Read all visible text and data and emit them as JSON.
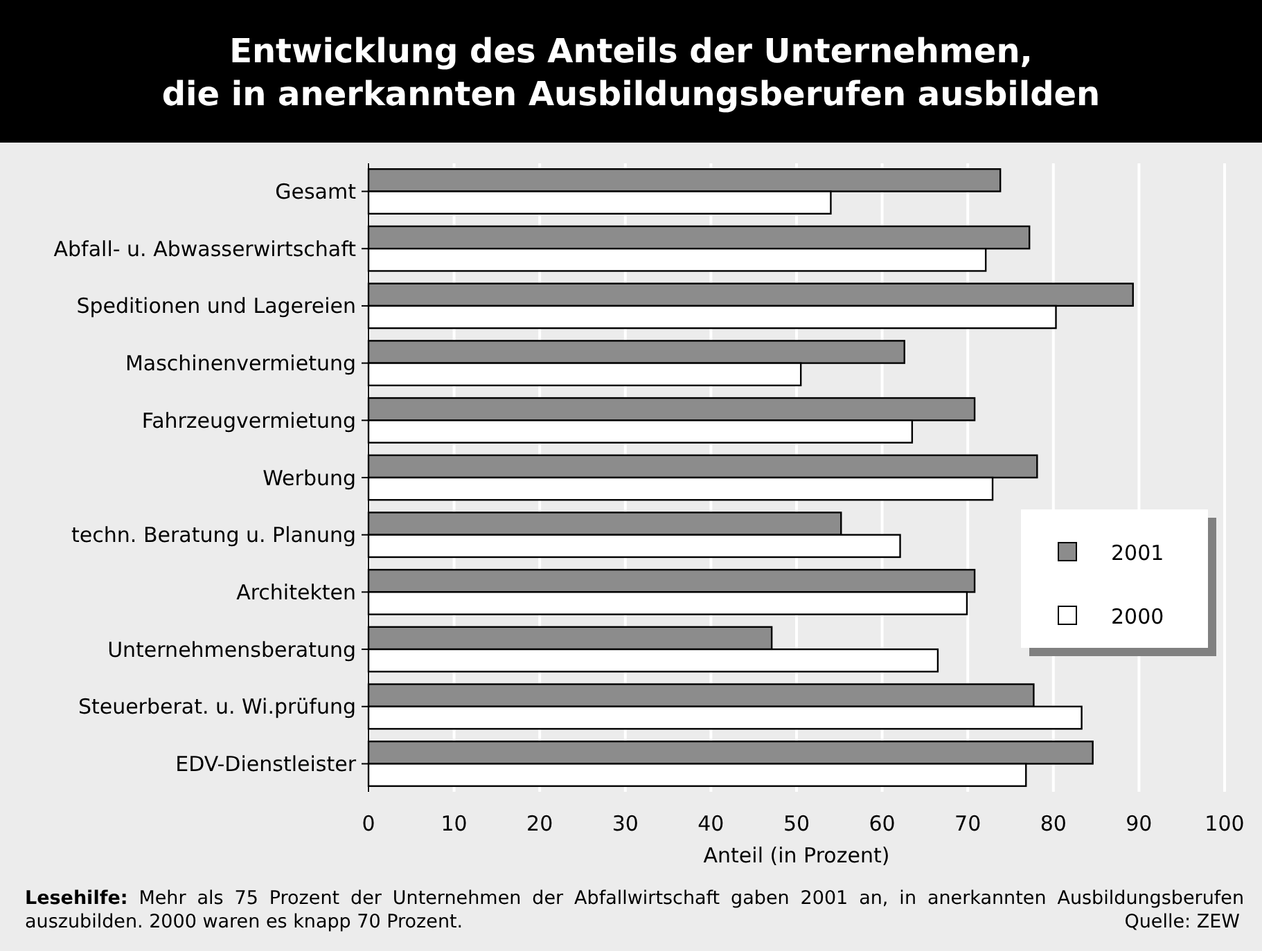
{
  "chart_data": {
    "type": "bar",
    "orientation": "horizontal",
    "title": "Entwicklung des Anteils der Unternehmen,\ndie in anerkannten Ausbildungsberufen ausbilden",
    "xlabel": "Anteil (in Prozent)",
    "categories": [
      "Gesamt",
      "Abfall- u. Abwasserwirtschaft",
      "Speditionen und Lagereien",
      "Maschinenvermietung",
      "Fahrzeugvermietung",
      "Werbung",
      "techn. Beratung u. Planung",
      "Architekten",
      "Unternehmensberatung",
      "Steuerberat. u. Wi.prüfung",
      "EDV-Dienstleister"
    ],
    "series": [
      {
        "name": "2001",
        "color": "#8c8c8c",
        "values": [
          73.8,
          77.2,
          89.3,
          62.6,
          70.8,
          78.1,
          55.2,
          70.8,
          47.1,
          77.7,
          84.6
        ]
      },
      {
        "name": "2000",
        "color": "#ffffff",
        "values": [
          54.0,
          72.1,
          80.3,
          50.5,
          63.5,
          72.9,
          62.1,
          69.9,
          66.5,
          83.3,
          76.8
        ]
      }
    ],
    "xlim": [
      0,
      100
    ],
    "xticks": [
      0,
      10,
      20,
      30,
      40,
      50,
      60,
      70,
      80,
      90,
      100
    ],
    "grid": "x",
    "legend": "right",
    "annotations": [
      "Lesehilfe: Mehr als 75 Prozent der Unternehmen der Abfallwirtschaft gaben 2001 an, in anerkannten Ausbildungsberufen auszubilden. 2000 waren es knapp 70 Prozent.",
      "Quelle: ZEW"
    ]
  }
}
